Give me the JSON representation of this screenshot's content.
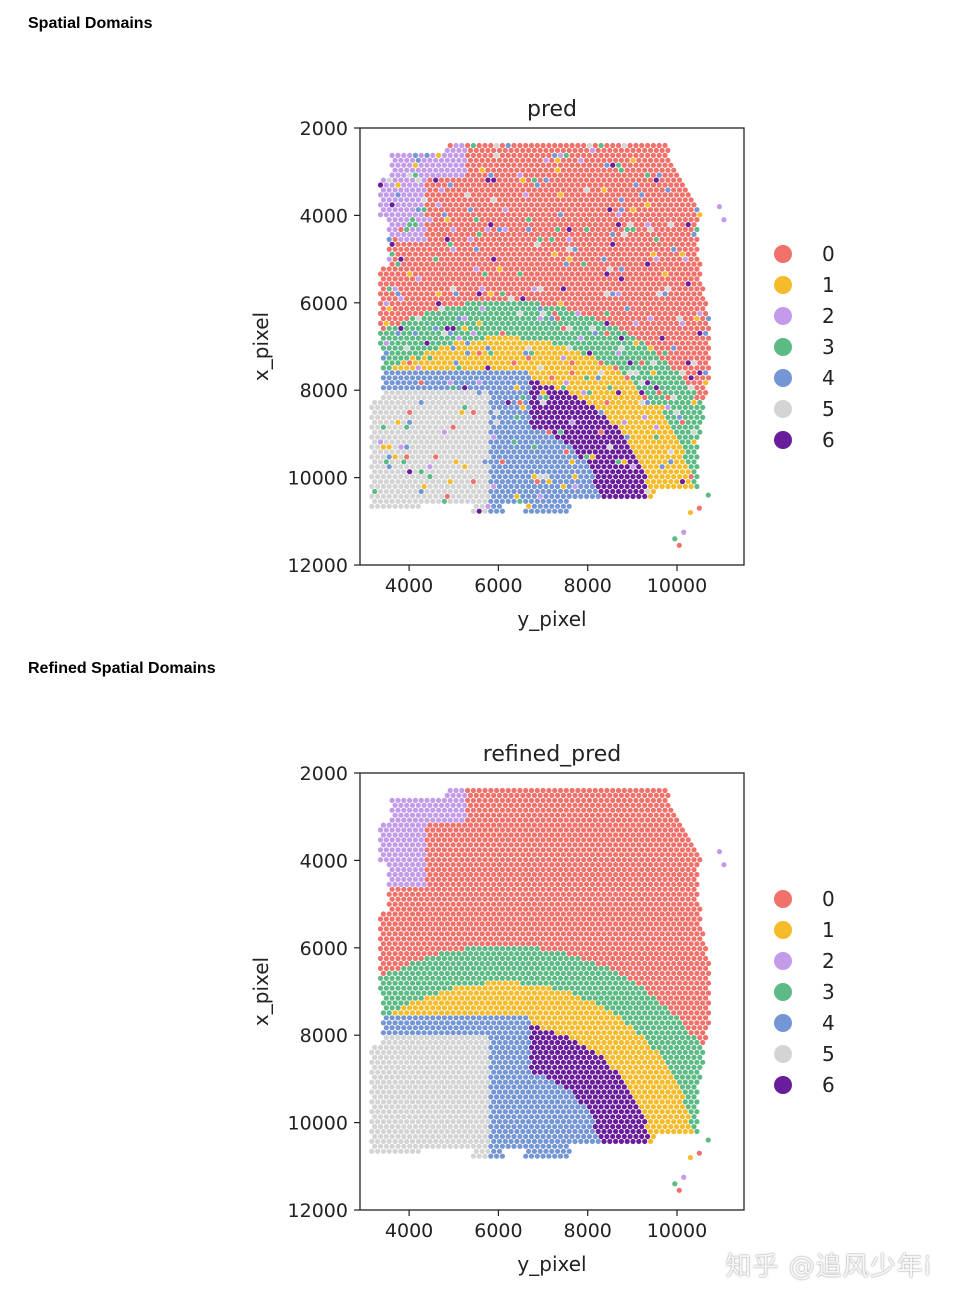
{
  "sections": [
    {
      "heading": "Spatial Domains"
    },
    {
      "heading": "Refined Spatial Domains"
    }
  ],
  "watermark": "知乎 @追风少年i",
  "chart_data": [
    {
      "type": "scatter",
      "title": "pred",
      "xlabel": "y_pixel",
      "ylabel": "x_pixel",
      "xlim": [
        2900,
        11500
      ],
      "ylim": [
        12000,
        2000
      ],
      "xticks": [
        4000,
        6000,
        8000,
        10000
      ],
      "yticks": [
        2000,
        4000,
        6000,
        8000,
        10000,
        12000
      ],
      "legend": {
        "position": "right",
        "entries": [
          "0",
          "1",
          "2",
          "3",
          "4",
          "5",
          "6"
        ]
      },
      "colors": [
        "#f0706a",
        "#f5bb2a",
        "#c39be8",
        "#5cba84",
        "#7496d4",
        "#d4d4d4",
        "#6a1d9a"
      ],
      "noisy": true
    },
    {
      "type": "scatter",
      "title": "refined_pred",
      "xlabel": "y_pixel",
      "ylabel": "x_pixel",
      "xlim": [
        2900,
        11500
      ],
      "ylim": [
        12000,
        2000
      ],
      "xticks": [
        4000,
        6000,
        8000,
        10000
      ],
      "yticks": [
        2000,
        4000,
        6000,
        8000,
        10000,
        12000
      ],
      "legend": {
        "position": "right",
        "entries": [
          "0",
          "1",
          "2",
          "3",
          "4",
          "5",
          "6"
        ]
      },
      "colors": [
        "#f0706a",
        "#f5bb2a",
        "#c39be8",
        "#5cba84",
        "#7496d4",
        "#d4d4d4",
        "#6a1d9a"
      ],
      "noisy": false
    }
  ]
}
